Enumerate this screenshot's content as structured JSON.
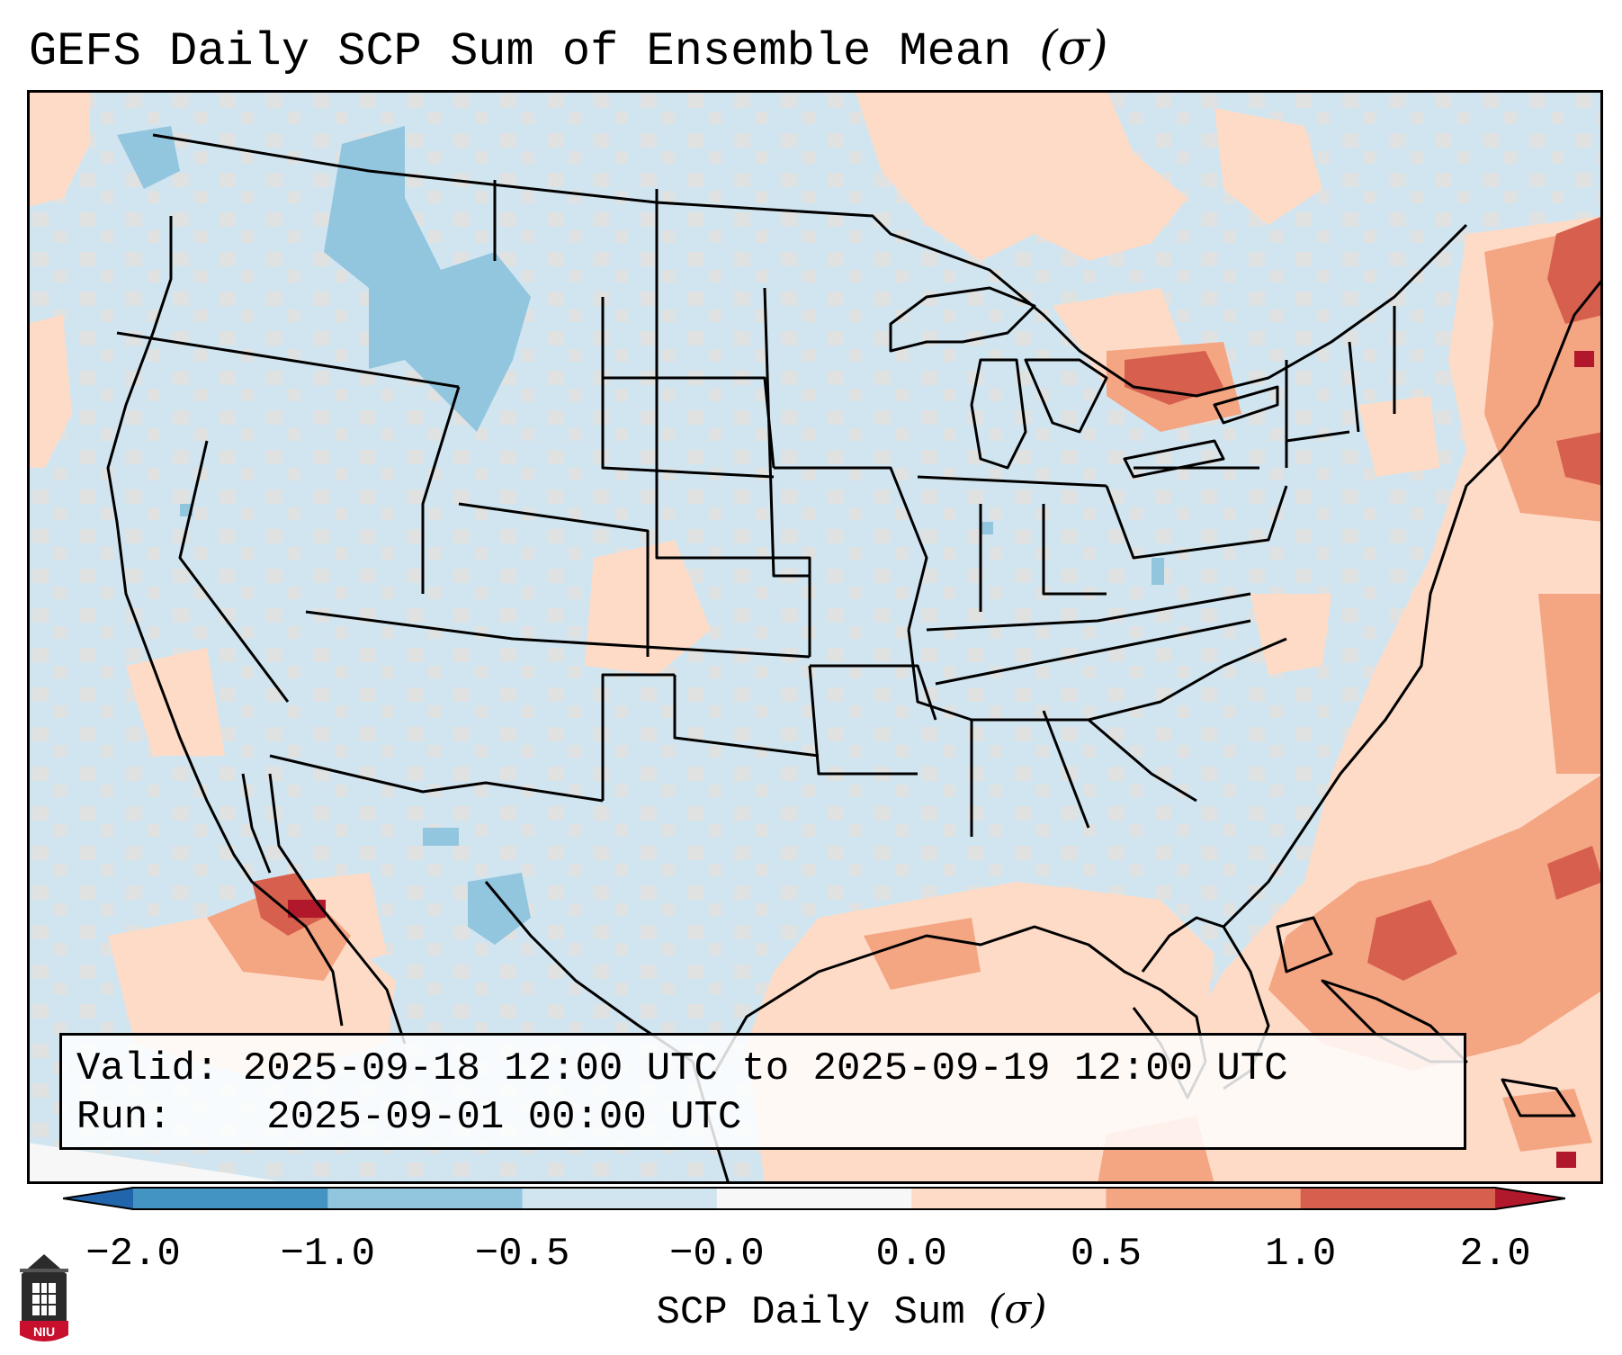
{
  "title": {
    "text": "GEFS Daily SCP Sum of Ensemble Mean",
    "unit": "(σ)"
  },
  "info": {
    "valid_label": "Valid:",
    "valid_value": "2025-09-18 12:00 UTC to 2025-09-19 12:00 UTC",
    "run_label": "Run:",
    "run_value": "2025-09-01 00:00 UTC"
  },
  "colorbar": {
    "label": "SCP Daily Sum",
    "label_unit": "(σ)",
    "tick_labels": [
      "−2.0",
      "−1.0",
      "−0.5",
      "−0.0",
      "0.0",
      "0.5",
      "1.0",
      "2.0"
    ],
    "bins": [
      {
        "range": "< -2.0",
        "color": "#2166ac"
      },
      {
        "range": "-2.0 to -1.0",
        "color": "#4393c3"
      },
      {
        "range": "-1.0 to -0.5",
        "color": "#92c5de"
      },
      {
        "range": "-0.5 to -0.0",
        "color": "#d1e5f0"
      },
      {
        "range": "-0.0 to 0.0",
        "color": "#f7f7f7"
      },
      {
        "range": "0.0 to 0.5",
        "color": "#fddbc7"
      },
      {
        "range": "0.5 to 1.0",
        "color": "#f4a582"
      },
      {
        "range": "1.0 to 2.0",
        "color": "#d6604d"
      },
      {
        "range": "> 2.0",
        "color": "#b2182b"
      }
    ]
  },
  "logo": {
    "text": "NIU"
  }
}
